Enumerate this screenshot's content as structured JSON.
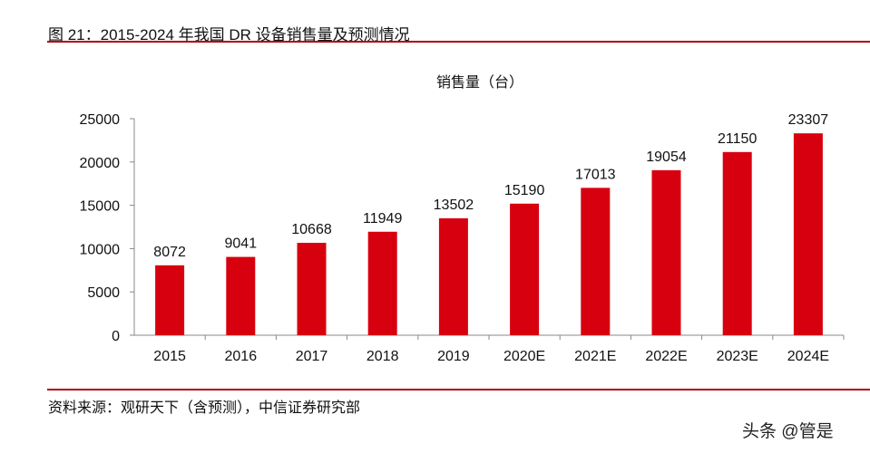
{
  "header": {
    "title": "图 21：2015-2024 年我国 DR 设备销售量及预测情况"
  },
  "footer": {
    "source": "资料来源：观研天下（含预测），中信证券研究部",
    "watermark": "头条 @管是"
  },
  "chart_data": {
    "type": "bar",
    "title": "销售量（台）",
    "categories": [
      "2015",
      "2016",
      "2017",
      "2018",
      "2019",
      "2020E",
      "2021E",
      "2022E",
      "2023E",
      "2024E"
    ],
    "values": [
      8072,
      9041,
      10668,
      11949,
      13502,
      15190,
      17013,
      19054,
      21150,
      23307
    ],
    "ylim": [
      0,
      25000
    ],
    "yticks": [
      0,
      5000,
      10000,
      15000,
      20000,
      25000
    ],
    "xlabel": "",
    "ylabel": "",
    "grid": false,
    "bar_color": "#d7000f",
    "data_labels": true
  }
}
